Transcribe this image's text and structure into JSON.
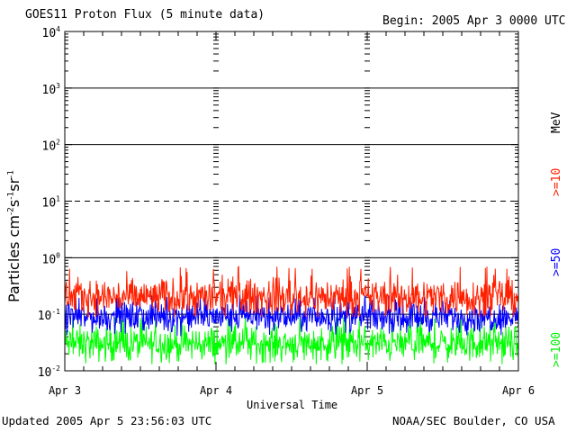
{
  "chart_data": {
    "type": "line",
    "title": "GOES11 Proton Flux (5 minute data)",
    "begin_label": "Begin: 2005 Apr 3 0000 UTC",
    "xlabel": "Universal Time",
    "ylabel": "Particles cm",
    "ylabel_exponents": [
      "-2",
      "-1",
      "-1"
    ],
    "ylabel_units": [
      "s",
      "sr"
    ],
    "x_ticks": [
      "Apr 3",
      "Apr 4",
      "Apr 5",
      "Apr 6"
    ],
    "x_range_days": [
      0,
      3
    ],
    "y_scale": "log",
    "ylim": [
      0.01,
      10000
    ],
    "y_ticks": [
      {
        "base": "10",
        "exp": "-2",
        "value": 0.01
      },
      {
        "base": "10",
        "exp": "-1",
        "value": 0.1
      },
      {
        "base": "10",
        "exp": "0",
        "value": 1
      },
      {
        "base": "10",
        "exp": "1",
        "value": 10
      },
      {
        "base": "10",
        "exp": "2",
        "value": 100
      },
      {
        "base": "10",
        "exp": "3",
        "value": 1000
      },
      {
        "base": "10",
        "exp": "4",
        "value": 10000
      }
    ],
    "threshold_lines": [
      {
        "value": 1000,
        "style": "solid"
      },
      {
        "value": 100,
        "style": "solid"
      },
      {
        "value": 10,
        "style": "dashed"
      },
      {
        "value": 1,
        "style": "solid"
      },
      {
        "value": 0.1,
        "style": "solid"
      }
    ],
    "series": [
      {
        "name": ">=10",
        "color": "#ff2000",
        "median": 0.2,
        "min": 0.09,
        "max": 0.7
      },
      {
        "name": ">=50",
        "color": "#0000ff",
        "median": 0.09,
        "min": 0.04,
        "max": 0.22
      },
      {
        "name": ">=100",
        "color": "#00ff00",
        "median": 0.03,
        "min": 0.013,
        "max": 0.09
      }
    ],
    "legend_unit": "MeV",
    "legend_position": "right"
  },
  "footer": {
    "updated": "Updated 2005 Apr  5 23:56:03 UTC",
    "credit": "NOAA/SEC Boulder, CO USA"
  }
}
